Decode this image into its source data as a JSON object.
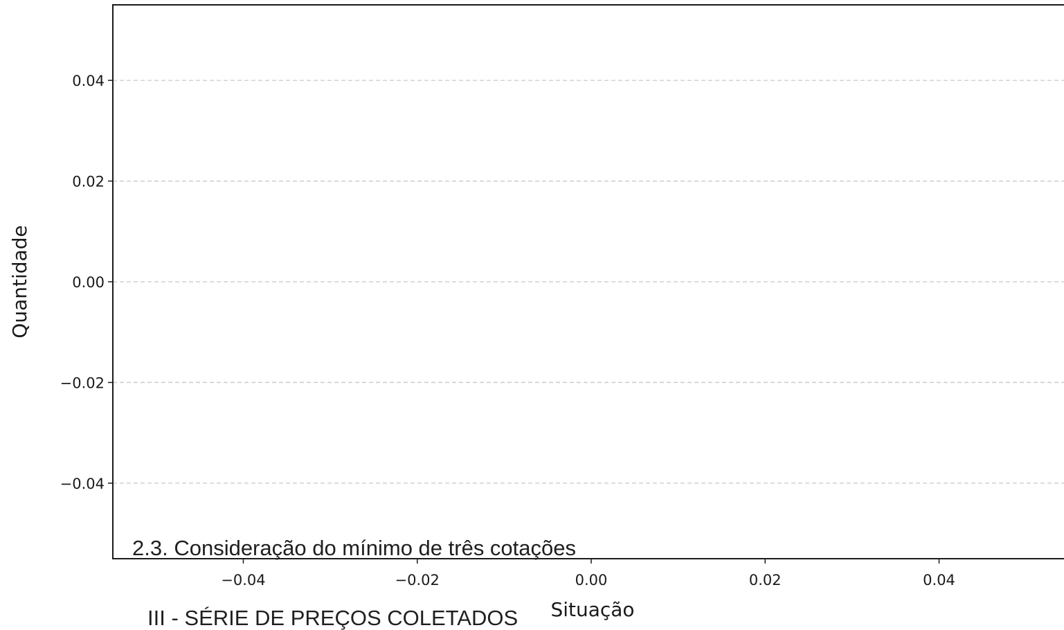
{
  "chart_data": {
    "type": "bar",
    "title": "",
    "xlabel": "Situação",
    "ylabel": "Quantidade",
    "xlim": [
      -0.055,
      0.055
    ],
    "ylim": [
      -0.055,
      0.055
    ],
    "x_ticks": [
      -0.04,
      -0.02,
      0.0,
      0.02,
      0.04
    ],
    "x_tick_labels": [
      "−0.04",
      "−0.02",
      "0.00",
      "0.02",
      "0.04"
    ],
    "y_ticks": [
      0.04,
      0.02,
      0.0,
      -0.02,
      -0.04
    ],
    "y_tick_labels": [
      "0.04",
      "0.02",
      "0.00",
      "−0.02",
      "−0.04"
    ],
    "grid": "y-dashed",
    "categories": [],
    "values": []
  },
  "document": {
    "subsection_heading": "2.3. Consideração do mínimo de três cotações",
    "section_heading": "III - SÉRIE DE PREÇOS COLETADOS"
  },
  "colors": {
    "axis": "#1a1a1a",
    "grid": "#c8c8c8",
    "text": "#1a1a1a"
  }
}
